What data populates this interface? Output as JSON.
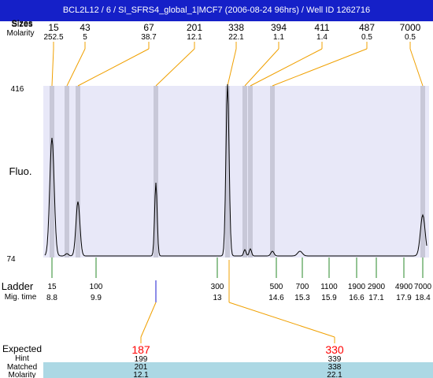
{
  "title": "BCL2L12 / 6 / SI_SFRS4_global_1|MCF7 (2006-08-24 96hrs) / Well ID 1262716",
  "header_labels": {
    "sizes": "Sizes",
    "molarity": "Molarity"
  },
  "y_axis": {
    "label": "Fluo.",
    "max": "416",
    "min": "74"
  },
  "peaks": [
    {
      "size": "15",
      "molarity": "252.5"
    },
    {
      "size": "43",
      "molarity": "5"
    },
    {
      "size": "67",
      "molarity": "38.7"
    },
    {
      "size": "201",
      "molarity": "12.1"
    },
    {
      "size": "338",
      "molarity": "22.1"
    },
    {
      "size": "394",
      "molarity": "1.1"
    },
    {
      "size": "411",
      "molarity": "1.4"
    },
    {
      "size": "487",
      "molarity": "0.5"
    },
    {
      "size": "7000",
      "molarity": "0.5"
    }
  ],
  "ladder": {
    "label": "Ladder",
    "mig_label": "Mig. time",
    "items": [
      {
        "size": "15",
        "time": "8.8"
      },
      {
        "size": "100",
        "time": "9.9"
      },
      {
        "size": "300",
        "time": "13"
      },
      {
        "size": "500",
        "time": "14.6"
      },
      {
        "size": "700",
        "time": "15.3"
      },
      {
        "size": "1100",
        "time": "15.9"
      },
      {
        "size": "1900",
        "time": "16.6"
      },
      {
        "size": "2900",
        "time": "17.1"
      },
      {
        "size": "4900",
        "time": "17.9"
      },
      {
        "size": "7000",
        "time": "18.4"
      }
    ]
  },
  "expected": {
    "labels": {
      "expected": "Expected",
      "hint": "Hint",
      "matched": "Matched",
      "molarity": "Molarity"
    },
    "items": [
      {
        "expected": "187",
        "hint": "199",
        "matched": "201",
        "molarity": "12.1"
      },
      {
        "expected": "330",
        "hint": "339",
        "matched": "338",
        "molarity": "22.1"
      }
    ]
  },
  "colors": {
    "title_bar": "#1520c8",
    "plot_bg": "#e8e8f8",
    "peak_band": "#c8c8d8",
    "connector": "#f0a000",
    "ladder_tick": "#2a8a2a",
    "expected_text": "#ff0000",
    "highlight_row": "#acd8e4",
    "marker_blue": "#1a1ad0"
  }
}
